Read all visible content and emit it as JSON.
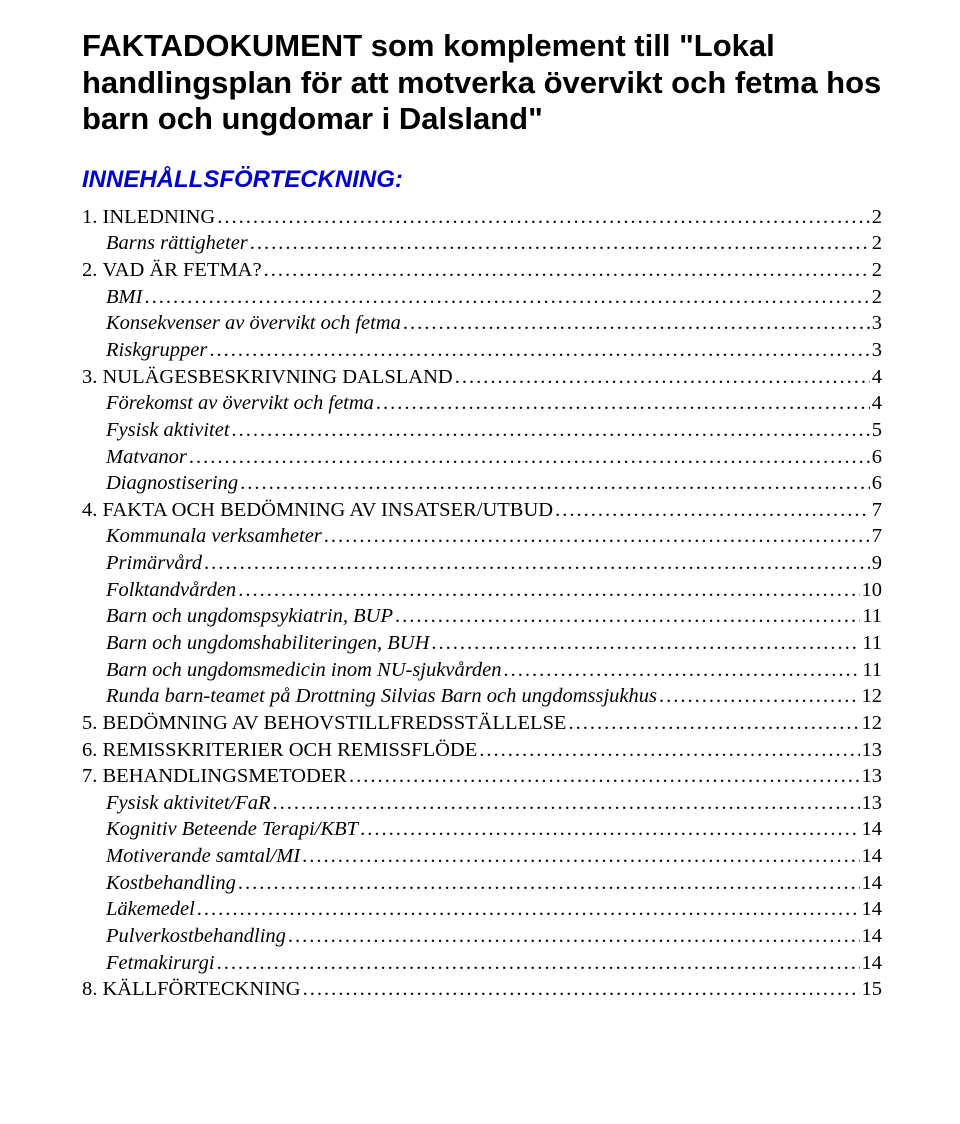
{
  "title": "FAKTADOKUMENT som komplement till \"Lokal handlingsplan för att motverka övervikt och fetma hos barn och ungdomar i Dalsland\"",
  "toc_heading": "INNEHÅLLSFÖRTECKNING:",
  "colors": {
    "heading": "#0000cc",
    "text": "#000000",
    "background": "#ffffff"
  },
  "toc": [
    {
      "label": "1. INLEDNING",
      "page": "2",
      "level": 0
    },
    {
      "label": "Barns rättigheter",
      "page": "2",
      "level": 1
    },
    {
      "label": "2. VAD ÄR FETMA?",
      "page": "2",
      "level": 0
    },
    {
      "label": "BMI",
      "page": "2",
      "level": 1
    },
    {
      "label": "Konsekvenser av övervikt och fetma",
      "page": "3",
      "level": 1
    },
    {
      "label": "Riskgrupper",
      "page": "3",
      "level": 1
    },
    {
      "label": "3. NULÄGESBESKRIVNING DALSLAND",
      "page": "4",
      "level": 0
    },
    {
      "label": "Förekomst av övervikt och fetma",
      "page": "4",
      "level": 1
    },
    {
      "label": "Fysisk aktivitet",
      "page": "5",
      "level": 1
    },
    {
      "label": "Matvanor",
      "page": "6",
      "level": 1
    },
    {
      "label": "Diagnostisering",
      "page": "6",
      "level": 1
    },
    {
      "label": "4. FAKTA OCH BEDÖMNING AV INSATSER/UTBUD",
      "page": "7",
      "level": 0
    },
    {
      "label": "Kommunala verksamheter",
      "page": "7",
      "level": 1
    },
    {
      "label": "Primärvård",
      "page": "9",
      "level": 1
    },
    {
      "label": "Folktandvården",
      "page": "10",
      "level": 1
    },
    {
      "label": "Barn och ungdomspsykiatrin, BUP",
      "page": "11",
      "level": 1
    },
    {
      "label": "Barn och ungdomshabiliteringen, BUH",
      "page": "11",
      "level": 1
    },
    {
      "label": "Barn och ungdomsmedicin inom NU-sjukvården",
      "page": "11",
      "level": 1
    },
    {
      "label": "Runda barn-teamet på Drottning Silvias Barn och ungdomssjukhus",
      "page": "12",
      "level": 1
    },
    {
      "label": "5. BEDÖMNING AV BEHOVSTILLFREDSSTÄLLELSE",
      "page": "12",
      "level": 0
    },
    {
      "label": "6. REMISSKRITERIER OCH REMISSFLÖDE",
      "page": "13",
      "level": 0
    },
    {
      "label": "7. BEHANDLINGSMETODER",
      "page": "13",
      "level": 0
    },
    {
      "label": "Fysisk aktivitet/FaR",
      "page": "13",
      "level": 1
    },
    {
      "label": "Kognitiv Beteende Terapi/KBT",
      "page": "14",
      "level": 1
    },
    {
      "label": "Motiverande samtal/MI",
      "page": "14",
      "level": 1
    },
    {
      "label": "Kostbehandling",
      "page": "14",
      "level": 1
    },
    {
      "label": "Läkemedel",
      "page": "14",
      "level": 1
    },
    {
      "label": "Pulverkostbehandling",
      "page": "14",
      "level": 1
    },
    {
      "label": "Fetmakirurgi",
      "page": "14",
      "level": 1
    },
    {
      "label": "8. KÄLLFÖRTECKNING",
      "page": "15",
      "level": 0
    }
  ]
}
